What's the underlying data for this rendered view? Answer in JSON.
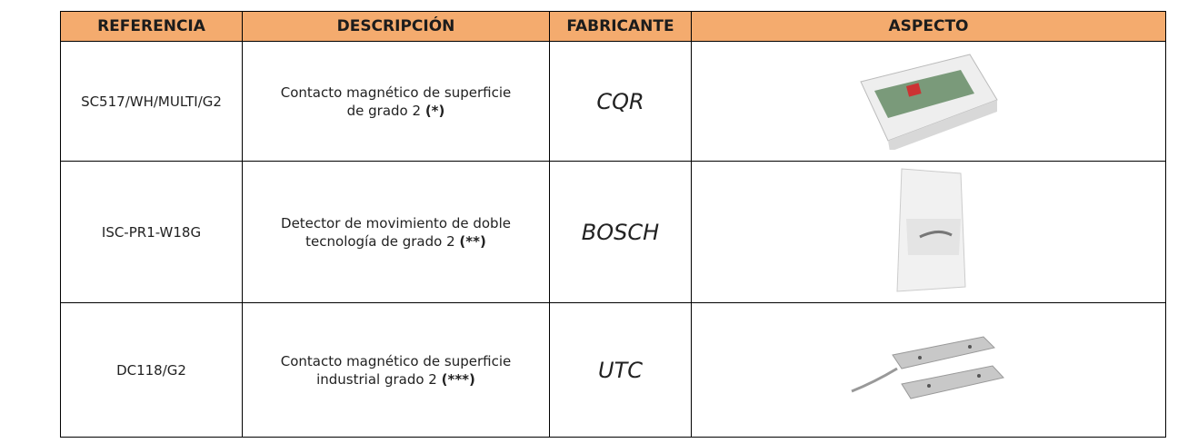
{
  "table": {
    "headers": [
      "REFERENCIA",
      "DESCRIPCIÓN",
      "FABRICANTE",
      "ASPECTO"
    ],
    "rows": [
      {
        "reference": "SC517/WH/MULTI/G2",
        "description": "Contacto magnético de superficie de grado 2",
        "note": "(*)",
        "manufacturer": "CQR"
      },
      {
        "reference": "ISC-PR1-W18G",
        "description": "Detector de movimiento de doble tecnología de grado 2",
        "note": "(**)",
        "manufacturer": "BOSCH"
      },
      {
        "reference": "DC118/G2",
        "description": "Contacto magnético de superficie industrial grado 2",
        "note": "(***)",
        "manufacturer": "UTC"
      }
    ]
  }
}
